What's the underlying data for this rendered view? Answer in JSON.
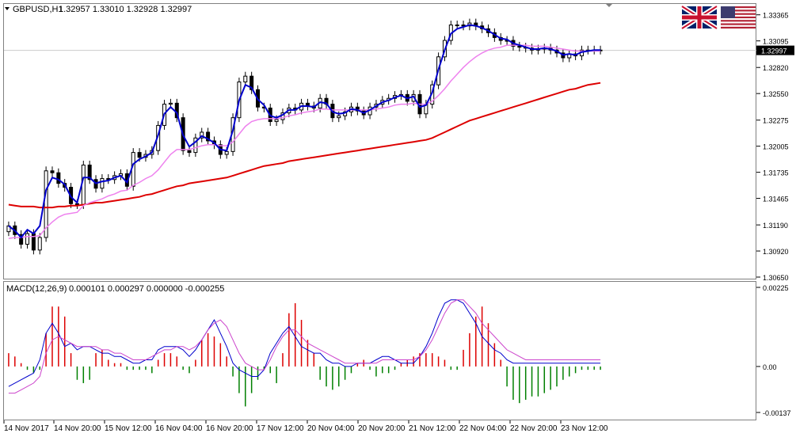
{
  "header": {
    "symbol_tf": "GBPUSD,H1",
    "ohlc": "1.32957 1.33010 1.32928 1.32997"
  },
  "macd_header": {
    "label": "MACD(12,26,9)",
    "values": "0.000101 0.000297 0.000000 -0.000255"
  },
  "flags": [
    "uk-flag",
    "us-flag"
  ],
  "colors": {
    "candles": "#000000",
    "ma_fast": "#0000cc",
    "ma_mid": "#ee82ee",
    "ma_slow": "#dd0000",
    "hist_pos": "#dd0000",
    "hist_neg": "#008000",
    "macd_line": "#0000cc",
    "signal_line": "#cc44cc",
    "current_price_box": "#000000",
    "grid": "#cccccc"
  },
  "chart_data": [
    {
      "type": "candlestick",
      "title": "GBPUSD,H1",
      "ylim": [
        1.3065,
        1.3342
      ],
      "y_ticks": [
        "1.33365",
        "1.33095",
        "1.32820",
        "1.32550",
        "1.32275",
        "1.32005",
        "1.31735",
        "1.31465",
        "1.31190",
        "1.30920",
        "1.30650"
      ],
      "current_price": "1.32997",
      "x_tick_labels": [
        "14 Nov 2017",
        "14 Nov 20:00",
        "15 Nov 12:00",
        "16 Nov 04:00",
        "16 Nov 20:00",
        "17 Nov 12:00",
        "20 Nov 04:00",
        "20 Nov 20:00",
        "21 Nov 12:00",
        "22 Nov 04:00",
        "22 Nov 20:00",
        "23 Nov 12:00"
      ],
      "x": [
        1,
        3,
        5,
        7,
        9,
        11,
        13,
        15,
        17,
        19,
        21,
        23,
        25,
        27,
        29,
        31,
        33,
        35,
        37,
        39,
        41,
        43,
        45,
        47,
        49,
        51,
        53,
        55,
        57,
        59,
        61,
        63,
        65,
        67,
        69,
        71,
        73,
        75,
        77,
        79,
        81,
        83,
        85,
        87,
        89,
        91,
        93,
        95,
        97,
        99,
        101,
        103,
        105,
        107,
        109,
        111,
        113,
        115,
        117,
        119,
        121,
        123,
        125,
        127,
        129,
        131,
        133,
        135,
        137,
        139,
        141,
        143,
        145,
        147,
        149,
        151,
        153,
        155,
        157,
        159,
        161,
        163,
        165,
        167,
        169,
        171,
        173,
        175,
        177,
        179,
        181,
        183,
        185,
        187,
        189,
        191
      ],
      "series": [
        {
          "name": "Close",
          "values": [
            1.3118,
            1.3109,
            1.3099,
            1.311,
            1.3093,
            1.3106,
            1.3175,
            1.3173,
            1.3162,
            1.3158,
            1.3141,
            1.314,
            1.3181,
            1.3166,
            1.3157,
            1.3167,
            1.3166,
            1.317,
            1.3172,
            1.3159,
            1.3194,
            1.3189,
            1.3192,
            1.3196,
            1.3222,
            1.3244,
            1.3245,
            1.323,
            1.3196,
            1.3194,
            1.3209,
            1.3215,
            1.3206,
            1.3202,
            1.3192,
            1.3195,
            1.323,
            1.3267,
            1.3273,
            1.3259,
            1.3241,
            1.324,
            1.3226,
            1.3228,
            1.3235,
            1.324,
            1.3238,
            1.3245,
            1.3242,
            1.324,
            1.325,
            1.3244,
            1.323,
            1.3232,
            1.3236,
            1.3241,
            1.3237,
            1.3233,
            1.3241,
            1.3244,
            1.3248,
            1.325,
            1.3253,
            1.3254,
            1.3247,
            1.3254,
            1.3234,
            1.3244,
            1.3264,
            1.3293,
            1.331,
            1.3326,
            1.3326,
            1.3325,
            1.3328,
            1.3325,
            1.3322,
            1.3318,
            1.3313,
            1.331,
            1.331,
            1.3304,
            1.3303,
            1.3302,
            1.33,
            1.3301,
            1.3302,
            1.33,
            1.3297,
            1.3292,
            1.3296,
            1.3294,
            1.33,
            1.33,
            1.33,
            1.33
          ]
        },
        {
          "name": "MA fast",
          "values": [
            1.3118,
            1.3113,
            1.3106,
            1.3114,
            1.311,
            1.3118,
            1.3155,
            1.3168,
            1.3166,
            1.3161,
            1.3148,
            1.3142,
            1.3168,
            1.3168,
            1.3162,
            1.3164,
            1.3165,
            1.3168,
            1.317,
            1.3163,
            1.3182,
            1.3187,
            1.319,
            1.3194,
            1.3212,
            1.3234,
            1.3241,
            1.3235,
            1.3212,
            1.32,
            1.3205,
            1.3211,
            1.3208,
            1.3204,
            1.3197,
            1.3196,
            1.3217,
            1.3248,
            1.3264,
            1.3261,
            1.3249,
            1.3243,
            1.3232,
            1.323,
            1.3233,
            1.3238,
            1.3238,
            1.3242,
            1.3242,
            1.3241,
            1.3246,
            1.3245,
            1.3236,
            1.3234,
            1.3235,
            1.3239,
            1.3238,
            1.3235,
            1.3238,
            1.3242,
            1.3246,
            1.3248,
            1.3251,
            1.3253,
            1.325,
            1.3252,
            1.3241,
            1.3243,
            1.3256,
            1.328,
            1.33,
            1.3317,
            1.3322,
            1.3324,
            1.3326,
            1.3325,
            1.3323,
            1.332,
            1.3316,
            1.3312,
            1.3311,
            1.3307,
            1.3305,
            1.3303,
            1.3301,
            1.3301,
            1.3302,
            1.3301,
            1.3299,
            1.3295,
            1.3296,
            1.3295,
            1.3298,
            1.3299,
            1.33,
            1.33
          ]
        },
        {
          "name": "MA mid",
          "values": [
            1.3105,
            1.3106,
            1.3106,
            1.3107,
            1.3107,
            1.3108,
            1.3116,
            1.3122,
            1.3127,
            1.313,
            1.3131,
            1.3132,
            1.3139,
            1.3142,
            1.3144,
            1.3146,
            1.3149,
            1.3151,
            1.3154,
            1.3155,
            1.316,
            1.3163,
            1.3167,
            1.317,
            1.3176,
            1.3184,
            1.3192,
            1.3197,
            1.3197,
            1.3197,
            1.3199,
            1.3201,
            1.3202,
            1.3202,
            1.3201,
            1.3201,
            1.3205,
            1.3213,
            1.3221,
            1.3226,
            1.3228,
            1.3229,
            1.3229,
            1.3229,
            1.323,
            1.3232,
            1.3233,
            1.3235,
            1.3236,
            1.3237,
            1.3239,
            1.3239,
            1.3238,
            1.3238,
            1.3238,
            1.3238,
            1.3238,
            1.3238,
            1.3238,
            1.3239,
            1.324,
            1.3241,
            1.3243,
            1.3244,
            1.3244,
            1.3245,
            1.3244,
            1.3244,
            1.3247,
            1.3253,
            1.326,
            1.3268,
            1.3275,
            1.3282,
            1.3288,
            1.3293,
            1.3297,
            1.33,
            1.3302,
            1.3303,
            1.3305,
            1.3305,
            1.3305,
            1.3305,
            1.3304,
            1.3304,
            1.3304,
            1.3303,
            1.3302,
            1.3301,
            1.33,
            1.3299,
            1.3299,
            1.3299,
            1.3299,
            1.3299
          ]
        },
        {
          "name": "MA slow",
          "values": [
            1.314,
            1.3139,
            1.3138,
            1.3138,
            1.3138,
            1.3137,
            1.3137,
            1.3137,
            1.3138,
            1.3138,
            1.3139,
            1.3139,
            1.314,
            1.3141,
            1.3142,
            1.3142,
            1.3143,
            1.3144,
            1.3145,
            1.3146,
            1.3147,
            1.3148,
            1.315,
            1.3151,
            1.3153,
            1.3155,
            1.3157,
            1.3159,
            1.316,
            1.3162,
            1.3163,
            1.3164,
            1.3165,
            1.3166,
            1.3167,
            1.3168,
            1.317,
            1.3172,
            1.3174,
            1.3176,
            1.3178,
            1.318,
            1.3181,
            1.3182,
            1.3183,
            1.3185,
            1.3186,
            1.3187,
            1.3188,
            1.3189,
            1.319,
            1.3191,
            1.3192,
            1.3193,
            1.3194,
            1.3195,
            1.3196,
            1.3197,
            1.3198,
            1.3199,
            1.32,
            1.3201,
            1.3202,
            1.3203,
            1.3204,
            1.3205,
            1.3206,
            1.3207,
            1.3209,
            1.3212,
            1.3215,
            1.3218,
            1.3221,
            1.3224,
            1.3227,
            1.3229,
            1.3231,
            1.3233,
            1.3235,
            1.3237,
            1.3239,
            1.3241,
            1.3243,
            1.3245,
            1.3247,
            1.3249,
            1.3251,
            1.3253,
            1.3255,
            1.3257,
            1.3259,
            1.326,
            1.3262,
            1.3264,
            1.3265,
            1.3266
          ]
        }
      ]
    },
    {
      "type": "macd",
      "title": "MACD(12,26,9)",
      "ylim": [
        -0.00015,
        0.00024
      ],
      "y_ticks": [
        "0.00225",
        "0.00",
        "-0.00137"
      ],
      "x": [
        1,
        3,
        5,
        7,
        9,
        11,
        13,
        15,
        17,
        19,
        21,
        23,
        25,
        27,
        29,
        31,
        33,
        35,
        37,
        39,
        41,
        43,
        45,
        47,
        49,
        51,
        53,
        55,
        57,
        59,
        61,
        63,
        65,
        67,
        69,
        71,
        73,
        75,
        77,
        79,
        81,
        83,
        85,
        87,
        89,
        91,
        93,
        95,
        97,
        99,
        101,
        103,
        105,
        107,
        109,
        111,
        113,
        115,
        117,
        119,
        121,
        123,
        125,
        127,
        129,
        131,
        133,
        135,
        137,
        139,
        141,
        143,
        145,
        147,
        149,
        151,
        153,
        155,
        157,
        159,
        161,
        163,
        165,
        167,
        169,
        171,
        173,
        175,
        177,
        179,
        181,
        183,
        185,
        187,
        189,
        191
      ],
      "series": [
        {
          "name": "Histogram",
          "values": [
            4e-05,
            3e-05,
            1e-05,
            -1e-05,
            -2e-05,
            -1e-05,
            0.0001,
            0.00018,
            0.00018,
            0.00015,
            4e-05,
            -4e-05,
            -5e-05,
            -4e-05,
            4e-05,
            5e-05,
            2e-05,
            1e-05,
            1e-05,
            -1e-05,
            -1e-05,
            -1e-05,
            -1e-05,
            -2e-05,
            2e-05,
            4e-05,
            4e-05,
            3e-05,
            -1e-05,
            -2e-05,
            2e-05,
            8e-05,
            0.0001,
            9e-05,
            7e-05,
            3e-05,
            -3e-05,
            -8e-05,
            -0.00012,
            -8e-05,
            -4e-05,
            -1e-05,
            -2e-05,
            -5e-05,
            4e-05,
            0.00016,
            0.00019,
            0.00014,
            8e-05,
            4e-05,
            -4e-05,
            -6e-05,
            -7e-05,
            -6e-05,
            -4e-05,
            -2e-05,
            1e-05,
            2e-05,
            -1e-05,
            -3e-05,
            -2e-05,
            -2e-05,
            -1e-05,
            1e-05,
            2e-05,
            3e-05,
            4e-05,
            4e-05,
            4e-05,
            3e-05,
            2e-05,
            -1e-05,
            -1e-05,
            5e-05,
            0.0001,
            0.00015,
            0.00018,
            0.00013,
            7e-05,
            2e-05,
            -6e-05,
            -0.0001,
            -0.00011,
            -0.0001,
            -9e-05,
            -9e-05,
            -8e-05,
            -7e-05,
            -6e-05,
            -4e-05,
            -3e-05,
            -2e-05,
            -1e-05,
            -1e-05,
            -1e-05,
            -1e-05
          ]
        },
        {
          "name": "MACD",
          "values": [
            -6e-05,
            -5e-05,
            -4e-05,
            -3e-05,
            -2e-05,
            2e-05,
            0.0001,
            0.00013,
            0.0001,
            6e-05,
            7e-05,
            5e-05,
            6e-05,
            6e-05,
            5e-05,
            4e-05,
            4e-05,
            3e-05,
            3e-05,
            2e-05,
            1e-05,
            1e-05,
            2e-05,
            2e-05,
            5e-05,
            6e-05,
            6e-05,
            6e-05,
            5e-05,
            3e-05,
            5e-05,
            8e-05,
            0.00011,
            0.00014,
            0.0001,
            6e-05,
            1e-05,
            -1e-05,
            -2e-05,
            -3e-05,
            -3e-05,
            -1e-05,
            4e-05,
            7e-05,
            0.0001,
            0.00012,
            9e-05,
            6e-05,
            5e-05,
            4e-05,
            4e-05,
            2e-05,
            1e-05,
            1e-05,
            0.0,
            0.0,
            1e-05,
            1e-05,
            1e-05,
            2e-05,
            3e-05,
            3e-05,
            2e-05,
            1e-05,
            1e-05,
            1e-05,
            3e-05,
            6e-05,
            0.0001,
            0.00015,
            0.00019,
            0.0002,
            0.0002,
            0.00019,
            0.00016,
            0.00013,
            9e-05,
            7e-05,
            5e-05,
            4e-05,
            2e-05,
            1e-05,
            1e-05,
            1e-05,
            1e-05,
            1e-05,
            1e-05,
            1e-05,
            1e-05,
            1e-05,
            1e-05,
            1e-05,
            1e-05,
            1e-05,
            1e-05,
            1e-05
          ]
        },
        {
          "name": "Signal",
          "values": [
            -8e-05,
            -8e-05,
            -7e-05,
            -6e-05,
            -5e-05,
            -3e-05,
            4e-05,
            8e-05,
            9e-05,
            8e-05,
            7e-05,
            6e-05,
            6e-05,
            6e-05,
            6e-05,
            5e-05,
            5e-05,
            4e-05,
            4e-05,
            3e-05,
            2e-05,
            2e-05,
            2e-05,
            3e-05,
            4e-05,
            5e-05,
            5e-05,
            6e-05,
            6e-05,
            5e-05,
            6e-05,
            8e-05,
            0.00011,
            0.00013,
            0.00014,
            0.00012,
            8e-05,
            4e-05,
            1e-05,
            0.0,
            -1e-05,
            -1e-05,
            2e-05,
            6e-05,
            9e-05,
            0.00011,
            0.00011,
            9e-05,
            7e-05,
            6e-05,
            5e-05,
            4e-05,
            3e-05,
            2e-05,
            1e-05,
            1e-05,
            1e-05,
            1e-05,
            1e-05,
            1e-05,
            2e-05,
            2e-05,
            2e-05,
            2e-05,
            2e-05,
            2e-05,
            3e-05,
            5e-05,
            8e-05,
            0.00012,
            0.00016,
            0.00019,
            0.0002,
            0.0002,
            0.00018,
            0.00016,
            0.00013,
            0.00011,
            9e-05,
            7e-05,
            5e-05,
            4e-05,
            3e-05,
            2e-05,
            2e-05,
            2e-05,
            2e-05,
            2e-05,
            2e-05,
            2e-05,
            2e-05,
            2e-05,
            2e-05,
            2e-05,
            2e-05,
            2e-05
          ]
        }
      ]
    }
  ]
}
